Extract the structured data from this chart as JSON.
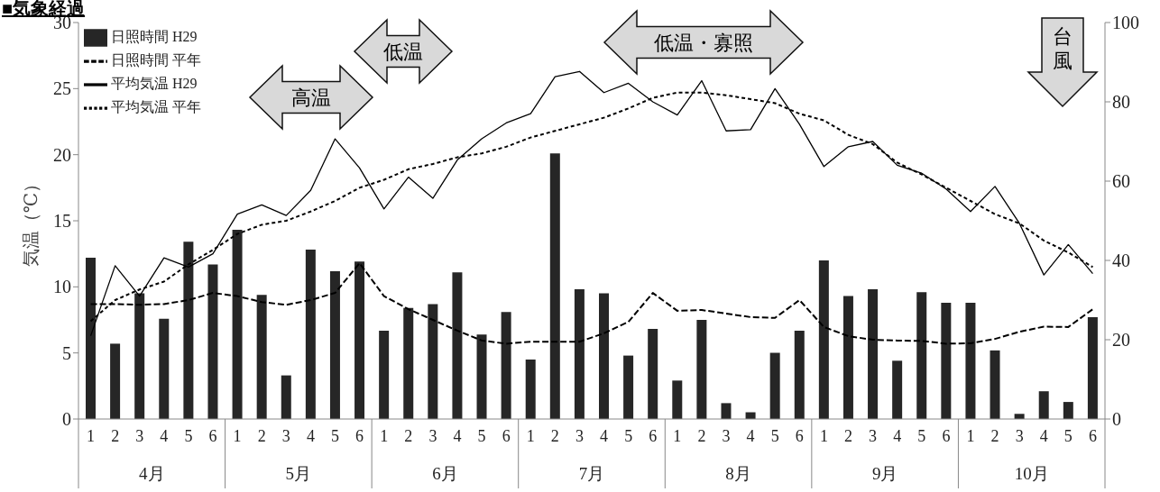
{
  "chart_data": {
    "type": "bar",
    "title": "■気象経過",
    "ylabel": "気温（℃）",
    "categories": [
      "1",
      "2",
      "3",
      "4",
      "5",
      "6",
      "1",
      "2",
      "3",
      "4",
      "5",
      "6",
      "1",
      "2",
      "3",
      "4",
      "5",
      "6",
      "1",
      "2",
      "3",
      "4",
      "5",
      "6",
      "1",
      "2",
      "3",
      "4",
      "5",
      "6",
      "1",
      "2",
      "3",
      "4",
      "5",
      "6",
      "1",
      "2",
      "3",
      "4",
      "5",
      "6"
    ],
    "series": [
      {
        "name": "日照時間 H29",
        "axis": "y2",
        "color": "#262626",
        "values": [
          40.7,
          19,
          31.7,
          25.3,
          44.7,
          39,
          47.7,
          31.3,
          11,
          42.7,
          37.3,
          39.7,
          22.3,
          28,
          29,
          37,
          21.3,
          27,
          15,
          67,
          32.7,
          31.7,
          16,
          22.7,
          9.7,
          25,
          4,
          1.7,
          16.7,
          22.3,
          40,
          31,
          32.7,
          14.7,
          32,
          29.3,
          29.3,
          17.3,
          1.3,
          7,
          4.3,
          25.7
        ]
      },
      {
        "name": "日照時間 平年",
        "type": "line",
        "axis": "y2",
        "color": "#000000",
        "line_style": "dashed",
        "values": [
          29,
          29,
          28.8,
          29,
          30,
          31.8,
          31,
          29.5,
          28.8,
          30,
          31.8,
          39.3,
          31,
          27.7,
          25,
          22.3,
          19.8,
          19,
          19.5,
          19.5,
          19.5,
          21.6,
          24.5,
          31.8,
          27.3,
          27.5,
          26.6,
          25.7,
          25.5,
          30,
          23.2,
          20.9,
          20,
          19.8,
          19.7,
          19,
          19.1,
          20.2,
          22,
          23.3,
          23.2,
          27.7
        ]
      },
      {
        "name": "平均気温 H29",
        "type": "line",
        "color": "#000000",
        "line_style": "solid",
        "values": [
          6.3,
          11.6,
          9.3,
          12.2,
          11.5,
          12.5,
          15.5,
          16.2,
          15.4,
          17.3,
          21.2,
          19,
          15.9,
          18.3,
          16.7,
          19.6,
          21.2,
          22.4,
          23.1,
          25.9,
          26.3,
          24.7,
          25.4,
          24,
          23,
          25.6,
          21.8,
          21.9,
          25,
          22.3,
          19.1,
          20.6,
          21,
          19.2,
          18.6,
          17.4,
          15.7,
          17.6,
          14.8,
          10.9,
          13.2,
          11
        ]
      },
      {
        "name": "平均気温 平年",
        "type": "line",
        "color": "#000000",
        "line_style": "dotted",
        "values": [
          7.4,
          9,
          9.8,
          10.4,
          11.7,
          12.8,
          14,
          14.7,
          15,
          15.7,
          16.5,
          17.5,
          18.1,
          18.9,
          19.3,
          19.8,
          20.1,
          20.6,
          21.3,
          21.8,
          22.3,
          22.8,
          23.5,
          24.3,
          24.7,
          24.7,
          24.5,
          24.2,
          23.9,
          23.1,
          22.6,
          21.5,
          20.8,
          19.4,
          18.5,
          17.5,
          16.5,
          15.5,
          14.8,
          13.5,
          12.6,
          11.5
        ]
      }
    ],
    "ylim": [
      0,
      30
    ],
    "yticks": [
      0,
      5,
      10,
      15,
      20,
      25,
      30
    ],
    "y2lim": [
      0,
      100
    ],
    "y2ticks": [
      0,
      20,
      40,
      60,
      80,
      100
    ],
    "legend": "top left",
    "marker": "none",
    "annotations": [
      "高温",
      "低温",
      "低温・寡照",
      "台風",
      "4月",
      "5月",
      "6月",
      "7月",
      "8月",
      "9月",
      "10月"
    ]
  }
}
